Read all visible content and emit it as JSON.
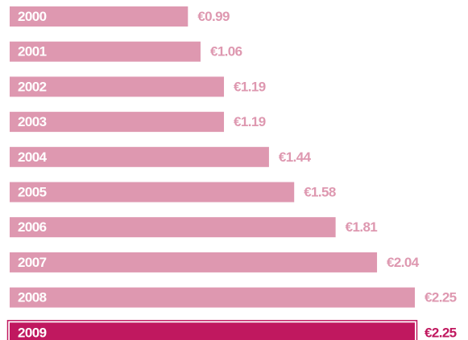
{
  "chart_data": {
    "type": "bar",
    "orientation": "horizontal",
    "categories": [
      "2000",
      "2001",
      "2002",
      "2003",
      "2004",
      "2005",
      "2006",
      "2007",
      "2008",
      "2009"
    ],
    "values": [
      0.99,
      1.06,
      1.19,
      1.19,
      1.44,
      1.58,
      1.81,
      2.04,
      2.25,
      2.25
    ],
    "value_labels": [
      "€0.99",
      "€1.06",
      "€1.19",
      "€1.19",
      "€1.44",
      "€1.58",
      "€1.81",
      "€2.04",
      "€2.25",
      "€2.25"
    ],
    "colors": [
      "#de98b0",
      "#de98b0",
      "#de98b0",
      "#de98b0",
      "#de98b0",
      "#de98b0",
      "#de98b0",
      "#de98b0",
      "#de98b0",
      "#c0185f"
    ]
  }
}
